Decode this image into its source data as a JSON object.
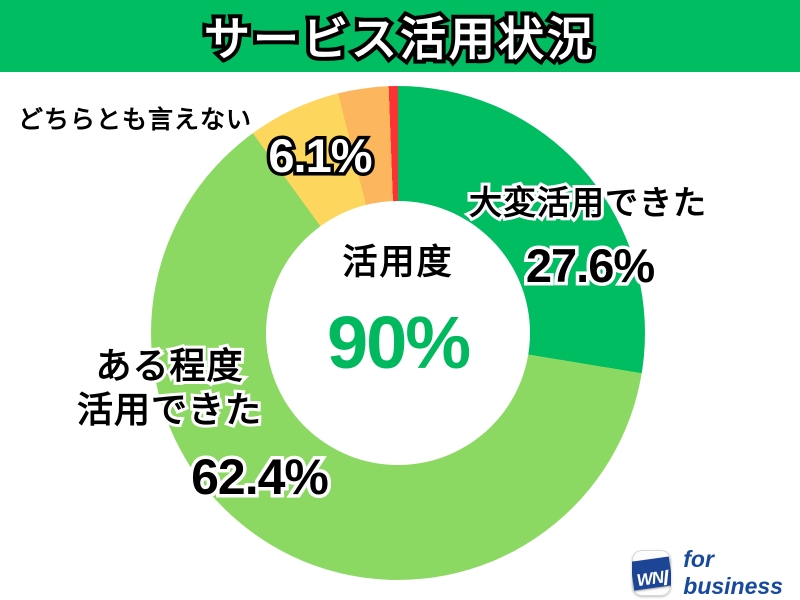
{
  "header": {
    "title": "サービス活用状況",
    "bg_color": "#00bd62"
  },
  "chart_data": {
    "type": "donut",
    "title": "サービス活用状況",
    "direction": "clockwise",
    "start_angle_deg": 0,
    "center_label": "活用度",
    "center_value": "90%",
    "center_value_color": "#00b95f",
    "segments": [
      {
        "label": "大変活用できた",
        "display_label": "大変活用できた",
        "value": 27.6,
        "display": "27.6%",
        "color": "#00bd62"
      },
      {
        "label": "ある程度活用できた",
        "display_label": "ある程度\n活用できた",
        "value": 62.4,
        "display": "62.4%",
        "color": "#8bd962"
      },
      {
        "label": "どちらとも言えない",
        "display_label": "どちらとも言えない",
        "value": 6.1,
        "display": "6.1%",
        "color": "#fdd75d"
      },
      {
        "label": "",
        "display_label": "",
        "value": 3.3,
        "display": "",
        "color": "#fbb65e"
      },
      {
        "label": "",
        "display_label": "",
        "value": 0.6,
        "display": "",
        "color": "#fc3235"
      }
    ]
  },
  "logo": {
    "mark": "WN",
    "text": "for business",
    "color": "#17499d"
  }
}
